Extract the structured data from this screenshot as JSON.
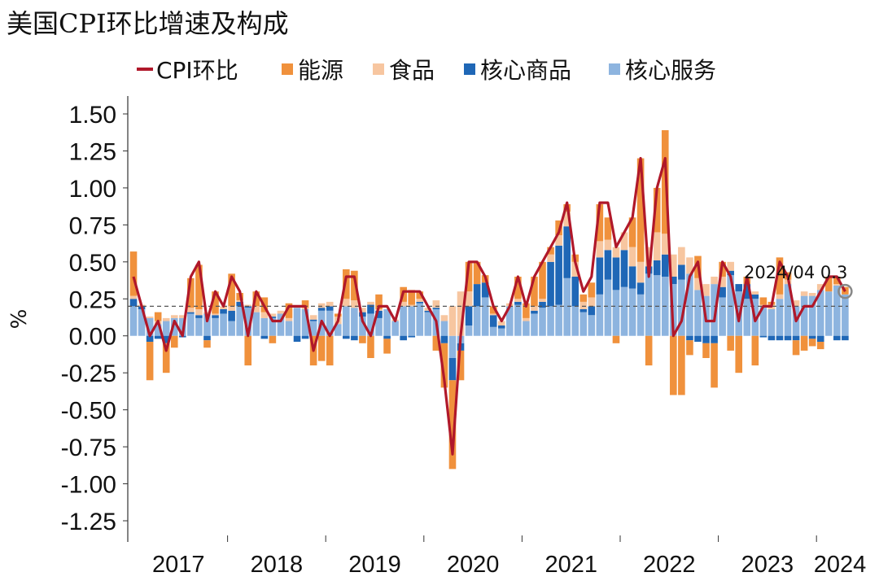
{
  "chart_data": {
    "type": "bar",
    "title": "美国CPI环比增速及构成",
    "ylabel": "%",
    "xlabel": "",
    "ylim": [
      -1.25,
      1.5
    ],
    "yticks": [
      "1.50",
      "1.25",
      "1.00",
      "0.75",
      "0.50",
      "0.25",
      "0.00",
      "-0.25",
      "-0.50",
      "-0.75",
      "-1.00",
      "-1.25"
    ],
    "year_labels": [
      "2017",
      "2018",
      "2019",
      "2020",
      "2021",
      "2022",
      "2023",
      "2024"
    ],
    "reference_line": 0.2,
    "annotation": "2024/04 0.3",
    "colors": {
      "cpi": "#b0182a",
      "energy": "#f0913c",
      "food": "#f7c6a0",
      "core_goods": "#1f67b6",
      "core_services": "#8db4df",
      "reference": "#555555",
      "axis": "#333333"
    },
    "legend": [
      "CPI环比",
      "能源",
      "食品",
      "核心商品",
      "核心服务"
    ],
    "months": [
      "2017-01",
      "2017-02",
      "2017-03",
      "2017-04",
      "2017-05",
      "2017-06",
      "2017-07",
      "2017-08",
      "2017-09",
      "2017-10",
      "2017-11",
      "2017-12",
      "2018-01",
      "2018-02",
      "2018-03",
      "2018-04",
      "2018-05",
      "2018-06",
      "2018-07",
      "2018-08",
      "2018-09",
      "2018-10",
      "2018-11",
      "2018-12",
      "2019-01",
      "2019-02",
      "2019-03",
      "2019-04",
      "2019-05",
      "2019-06",
      "2019-07",
      "2019-08",
      "2019-09",
      "2019-10",
      "2019-11",
      "2019-12",
      "2020-01",
      "2020-02",
      "2020-03",
      "2020-04",
      "2020-05",
      "2020-06",
      "2020-07",
      "2020-08",
      "2020-09",
      "2020-10",
      "2020-11",
      "2020-12",
      "2021-01",
      "2021-02",
      "2021-03",
      "2021-04",
      "2021-05",
      "2021-06",
      "2021-07",
      "2021-08",
      "2021-09",
      "2021-10",
      "2021-11",
      "2021-12",
      "2022-01",
      "2022-02",
      "2022-03",
      "2022-04",
      "2022-05",
      "2022-06",
      "2022-07",
      "2022-08",
      "2022-09",
      "2022-10",
      "2022-11",
      "2022-12",
      "2023-01",
      "2023-02",
      "2023-03",
      "2023-04",
      "2023-05",
      "2023-06",
      "2023-07",
      "2023-08",
      "2023-09",
      "2023-10",
      "2023-11",
      "2023-12",
      "2024-01",
      "2024-02",
      "2024-03",
      "2024-04"
    ],
    "series": [
      {
        "name": "CPI环比",
        "values": [
          0.4,
          0.2,
          0.0,
          0.1,
          -0.1,
          0.1,
          0.0,
          0.4,
          0.5,
          0.1,
          0.3,
          0.2,
          0.4,
          0.3,
          0.0,
          0.3,
          0.2,
          0.1,
          0.1,
          0.2,
          0.2,
          0.2,
          -0.1,
          0.1,
          0.0,
          0.1,
          0.4,
          0.4,
          0.1,
          0.0,
          0.2,
          0.2,
          0.1,
          0.3,
          0.3,
          0.3,
          0.2,
          0.1,
          -0.3,
          -0.8,
          0.0,
          0.5,
          0.5,
          0.4,
          0.2,
          0.1,
          0.2,
          0.4,
          0.2,
          0.4,
          0.5,
          0.6,
          0.7,
          0.9,
          0.5,
          0.3,
          0.4,
          0.9,
          0.9,
          0.6,
          0.7,
          0.8,
          1.2,
          0.4,
          1.0,
          1.2,
          0.0,
          0.1,
          0.4,
          0.5,
          0.1,
          0.1,
          0.5,
          0.4,
          0.1,
          0.4,
          0.1,
          0.2,
          0.2,
          0.5,
          0.4,
          0.1,
          0.2,
          0.2,
          0.3,
          0.4,
          0.4,
          0.3
        ]
      },
      {
        "name": "能源",
        "values": [
          0.3,
          0.0,
          -0.26,
          0.06,
          -0.2,
          -0.08,
          0.0,
          0.2,
          0.3,
          -0.05,
          0.15,
          0.0,
          0.22,
          0.05,
          -0.2,
          0.1,
          0.1,
          -0.05,
          0.0,
          0.1,
          0.0,
          0.05,
          -0.2,
          -0.17,
          -0.2,
          0.02,
          0.2,
          0.2,
          -0.05,
          -0.15,
          0.1,
          -0.1,
          0.0,
          0.1,
          0.1,
          0.05,
          0.0,
          -0.1,
          -0.3,
          -0.6,
          -0.2,
          0.2,
          0.15,
          0.05,
          0.05,
          0.0,
          0.0,
          0.15,
          0.1,
          0.2,
          0.25,
          0.05,
          0.1,
          0.05,
          0.05,
          0.05,
          0.1,
          0.25,
          0.15,
          -0.05,
          0.0,
          0.2,
          0.7,
          -0.2,
          0.3,
          0.7,
          -0.4,
          -0.4,
          -0.1,
          0.15,
          -0.1,
          -0.3,
          0.1,
          -0.1,
          -0.25,
          0.05,
          -0.2,
          0.05,
          0.02,
          0.25,
          0.05,
          -0.1,
          -0.1,
          -0.05,
          -0.05,
          0.1,
          0.05,
          0.05
        ]
      },
      {
        "name": "食品",
        "values": [
          0.02,
          0.01,
          0.01,
          0.02,
          0.02,
          0.02,
          0.02,
          0.03,
          0.04,
          0.01,
          0.01,
          0.02,
          0.03,
          0.01,
          0.01,
          0.04,
          0.04,
          0.02,
          0.02,
          0.02,
          0.01,
          0.01,
          0.03,
          0.03,
          0.03,
          0.05,
          0.05,
          0.05,
          0.03,
          0.02,
          0.01,
          0.0,
          0.01,
          0.03,
          0.01,
          0.02,
          0.02,
          0.05,
          0.04,
          0.2,
          0.3,
          0.1,
          0.0,
          0.0,
          0.01,
          0.03,
          0.02,
          0.02,
          0.02,
          0.03,
          0.02,
          0.05,
          0.07,
          0.1,
          0.1,
          0.05,
          0.06,
          0.11,
          0.07,
          0.07,
          0.12,
          0.13,
          0.14,
          0.13,
          0.19,
          0.14,
          0.15,
          0.12,
          0.11,
          0.08,
          0.08,
          0.05,
          0.07,
          0.06,
          0.0,
          0.0,
          0.02,
          0.01,
          0.03,
          0.03,
          0.03,
          0.04,
          0.03,
          0.02,
          0.04,
          0.0,
          0.01,
          0.0
        ]
      },
      {
        "name": "核心商品",
        "values": [
          0.05,
          0.02,
          -0.04,
          -0.02,
          -0.05,
          0.0,
          -0.01,
          0.01,
          0.02,
          -0.03,
          0.02,
          0.03,
          0.07,
          0.03,
          0.01,
          0.0,
          -0.02,
          0.01,
          0.0,
          0.0,
          -0.04,
          -0.02,
          0.01,
          0.02,
          0.03,
          0.0,
          -0.02,
          -0.03,
          0.03,
          0.06,
          0.05,
          -0.02,
          0.0,
          -0.03,
          -0.01,
          0.01,
          0.01,
          0.01,
          -0.05,
          -0.15,
          -0.05,
          0.13,
          0.15,
          0.1,
          0.08,
          0.02,
          0.0,
          0.02,
          0.0,
          0.02,
          0.04,
          0.3,
          0.4,
          0.35,
          0.2,
          0.02,
          0.06,
          0.25,
          0.2,
          0.22,
          0.25,
          0.15,
          0.08,
          0.05,
          0.1,
          0.15,
          0.05,
          0.1,
          -0.03,
          -0.04,
          -0.05,
          -0.05,
          0.07,
          0.03,
          0.05,
          0.1,
          0.03,
          -0.01,
          -0.03,
          -0.03,
          -0.03,
          -0.03,
          0.0,
          -0.02,
          -0.04,
          0.0,
          -0.03,
          -0.03
        ]
      },
      {
        "name": "核心服务",
        "values": [
          0.2,
          0.18,
          0.12,
          0.08,
          0.1,
          0.12,
          0.12,
          0.15,
          0.12,
          0.15,
          0.12,
          0.15,
          0.1,
          0.2,
          0.19,
          0.16,
          0.12,
          0.12,
          0.15,
          0.1,
          0.19,
          0.18,
          0.1,
          0.17,
          0.17,
          0.08,
          0.2,
          0.19,
          0.13,
          0.15,
          0.12,
          0.18,
          0.1,
          0.2,
          0.2,
          0.22,
          0.16,
          0.18,
          0.1,
          -0.15,
          -0.05,
          0.07,
          0.2,
          0.26,
          0.06,
          0.05,
          0.2,
          0.21,
          0.1,
          0.15,
          0.19,
          0.2,
          0.21,
          0.39,
          0.2,
          0.16,
          0.14,
          0.28,
          0.38,
          0.31,
          0.33,
          0.32,
          0.28,
          0.42,
          0.41,
          0.4,
          0.35,
          0.38,
          0.42,
          0.31,
          0.27,
          0.35,
          0.26,
          0.41,
          0.3,
          0.25,
          0.25,
          0.2,
          0.18,
          0.25,
          0.35,
          0.2,
          0.27,
          0.27,
          0.31,
          0.3,
          0.34,
          0.28
        ]
      }
    ]
  }
}
